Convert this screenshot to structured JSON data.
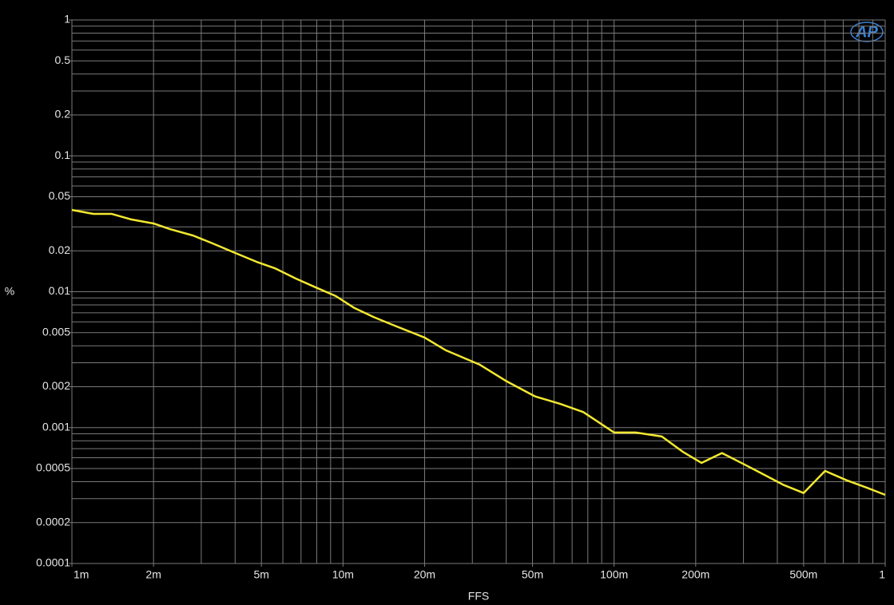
{
  "chart_data": {
    "type": "line",
    "xlabel": "FFS",
    "ylabel": "%",
    "logo": "AP",
    "xscale": "log",
    "yscale": "log",
    "grid": true,
    "xlim": [
      0.001,
      1
    ],
    "ylim": [
      0.0001,
      1
    ],
    "xticks": [
      {
        "value": 0.001,
        "label": "1m"
      },
      {
        "value": 0.002,
        "label": "2m"
      },
      {
        "value": 0.005,
        "label": "5m"
      },
      {
        "value": 0.01,
        "label": "10m"
      },
      {
        "value": 0.02,
        "label": "20m"
      },
      {
        "value": 0.05,
        "label": "50m"
      },
      {
        "value": 0.1,
        "label": "100m"
      },
      {
        "value": 0.2,
        "label": "200m"
      },
      {
        "value": 0.5,
        "label": "500m"
      },
      1
    ],
    "yticks": [
      1,
      0.5,
      0.2,
      0.1,
      0.05,
      0.02,
      0.01,
      0.005,
      0.002,
      0.001,
      0.0005,
      0.0002,
      0.0001
    ],
    "xgrid": [
      0.001,
      0.002,
      0.003,
      0.004,
      0.005,
      0.006,
      0.007,
      0.008,
      0.009,
      0.01,
      0.02,
      0.03,
      0.04,
      0.05,
      0.06,
      0.07,
      0.08,
      0.09,
      0.1,
      0.2,
      0.3,
      0.4,
      0.5,
      0.6,
      0.7,
      0.8,
      0.9,
      1
    ],
    "ygrid": [
      0.0001,
      0.0002,
      0.0003,
      0.0004,
      0.0005,
      0.0006,
      0.0007,
      0.0008,
      0.0009,
      0.001,
      0.002,
      0.003,
      0.004,
      0.005,
      0.006,
      0.007,
      0.008,
      0.009,
      0.01,
      0.02,
      0.03,
      0.04,
      0.05,
      0.06,
      0.07,
      0.08,
      0.09,
      0.1,
      0.2,
      0.3,
      0.4,
      0.5,
      0.6,
      0.7,
      0.8,
      0.9,
      1
    ],
    "x": [
      0.001,
      0.0012,
      0.0014,
      0.00166,
      0.002,
      0.0023,
      0.0028,
      0.0033,
      0.004,
      0.0048,
      0.0056,
      0.0067,
      0.0079,
      0.0094,
      0.011,
      0.013,
      0.0156,
      0.02,
      0.024,
      0.032,
      0.04,
      0.051,
      0.063,
      0.077,
      0.1,
      0.12,
      0.15,
      0.18,
      0.21,
      0.25,
      0.3,
      0.35,
      0.42,
      0.5,
      0.6,
      0.72,
      0.86,
      1
    ],
    "series": [
      {
        "color": "#f2e830",
        "values": [
          0.04,
          0.0374,
          0.0374,
          0.034,
          0.0318,
          0.0289,
          0.0259,
          0.0227,
          0.0193,
          0.0166,
          0.0149,
          0.0125,
          0.0108,
          0.0093,
          0.0076,
          0.0065,
          0.0056,
          0.0046,
          0.0037,
          0.0029,
          0.0022,
          0.0017,
          0.0015,
          0.0013,
          0.00092,
          0.00092,
          0.00086,
          0.00066,
          0.00055,
          0.00065,
          0.00054,
          0.00046,
          0.00038,
          0.00033,
          0.00048,
          0.00041,
          0.00036,
          0.00032
        ]
      }
    ]
  }
}
